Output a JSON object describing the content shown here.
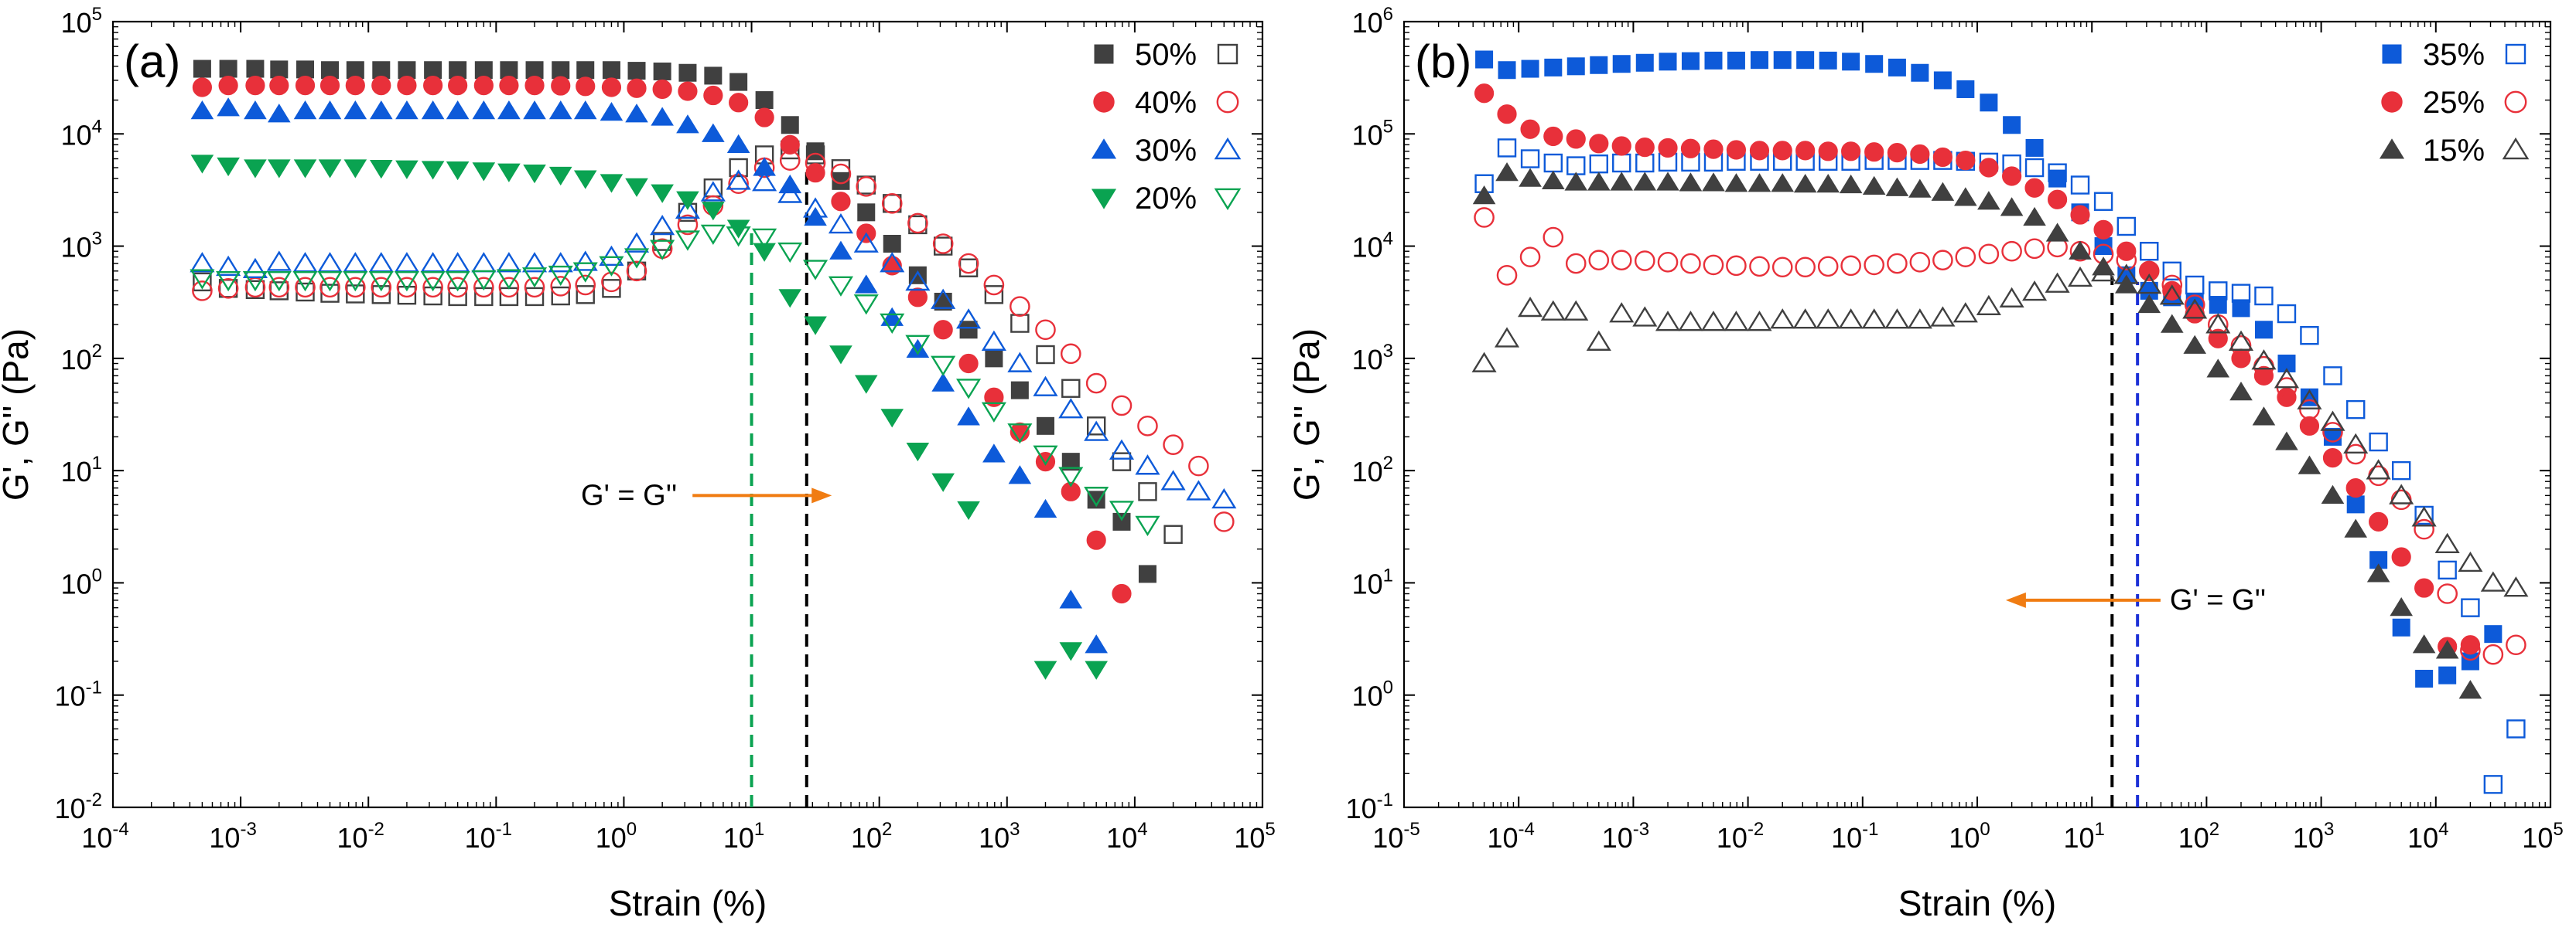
{
  "figure": {
    "colors": {
      "black": "#404040",
      "red": "#e8303a",
      "blue": "#0d5ad9",
      "green": "#0aa351",
      "annotation_arrow": "#f07c12",
      "drop_black": "#000000",
      "drop_green": "#0aa351",
      "drop_blue": "#1b2fd6"
    }
  },
  "chart_data": [
    {
      "type": "scatter",
      "panel_label": "(a)",
      "xlabel": "Strain (%)",
      "ylabel": "G', G'' (Pa)",
      "xscale": "log",
      "yscale": "log",
      "xlim_exp": [
        -4,
        5
      ],
      "ylim_exp": [
        -2,
        5
      ],
      "x_tick_exponents": [
        "-4",
        "-3",
        "-2",
        "-1",
        "0",
        "1",
        "2",
        "3",
        "4",
        "5"
      ],
      "y_tick_exponents": [
        "-2",
        "-1",
        "0",
        "1",
        "2",
        "3",
        "4",
        "5"
      ],
      "tick_base": "10",
      "legend_position": "top-right",
      "annotation": {
        "text": "G' = G''",
        "arrow_direction": "right",
        "x_data": 3.0,
        "y_data": 6.0
      },
      "crossover_lines": [
        {
          "color_key": "drop_green",
          "x": 10,
          "y_top": 1300
        },
        {
          "color_key": "drop_black",
          "x": 27,
          "y_top": 5200
        }
      ],
      "strain": [
        0.0005,
        0.0008,
        0.0013,
        0.002,
        0.0032,
        0.005,
        0.0079,
        0.0126,
        0.02,
        0.032,
        0.05,
        0.08,
        0.126,
        0.2,
        0.32,
        0.5,
        0.8,
        1.26,
        2,
        3.16,
        5,
        7.9,
        12.6,
        20,
        31.6,
        50,
        79,
        126,
        200,
        316,
        500,
        790,
        1260,
        2000,
        3160,
        5000,
        7900,
        12600,
        20000,
        31600,
        50000
      ],
      "series": [
        {
          "name": "50%",
          "color_key": "black",
          "G_prime": [
            38000,
            38000,
            38000,
            37500,
            37500,
            37000,
            37000,
            37000,
            37000,
            37000,
            37000,
            37000,
            37000,
            37000,
            37000,
            37000,
            37000,
            36500,
            36000,
            35000,
            33000,
            29000,
            20000,
            12000,
            7000,
            3800,
            2000,
            1050,
            550,
            320,
            180,
            100,
            52,
            25,
            12,
            5.5,
            3.5,
            1.2,
            null,
            null,
            null
          ],
          "G_double_prime": [
            480,
            420,
            410,
            400,
            390,
            380,
            375,
            370,
            365,
            360,
            355,
            355,
            355,
            355,
            360,
            370,
            420,
            600,
            1100,
            2000,
            3300,
            5000,
            6500,
            7200,
            6500,
            4900,
            3500,
            2400,
            1550,
            1000,
            640,
            370,
            205,
            108,
            54,
            25,
            12,
            6.5,
            2.7,
            null,
            null
          ]
        },
        {
          "name": "40%",
          "color_key": "red",
          "G_prime": [
            26000,
            27000,
            27000,
            27000,
            27000,
            27000,
            27000,
            27000,
            27000,
            27000,
            27000,
            27000,
            27000,
            27000,
            26800,
            26500,
            26000,
            25500,
            25000,
            24000,
            22000,
            19000,
            14000,
            8000,
            4500,
            2500,
            1300,
            670,
            350,
            180,
            90,
            45,
            22,
            12,
            6.5,
            2.4,
            0.8,
            null,
            null,
            null,
            null
          ],
          "G_double_prime": [
            400,
            420,
            430,
            430,
            430,
            430,
            430,
            430,
            430,
            430,
            430,
            430,
            430,
            430,
            440,
            450,
            480,
            600,
            950,
            1550,
            2300,
            3600,
            5000,
            5800,
            5500,
            4400,
            3400,
            2400,
            1600,
            1050,
            700,
            450,
            290,
            180,
            110,
            60,
            38,
            25,
            17,
            11,
            3.5
          ]
        },
        {
          "name": "30%",
          "color_key": "blue",
          "G_prime": [
            16000,
            17000,
            16000,
            15000,
            16000,
            16000,
            16000,
            16000,
            16000,
            16000,
            16000,
            16000,
            16000,
            16000,
            16000,
            16000,
            15500,
            15000,
            14000,
            12000,
            10000,
            8000,
            5000,
            3500,
            1800,
            900,
            450,
            230,
            120,
            60,
            30,
            14,
            9,
            4.5,
            0.7,
            0.28,
            null,
            null,
            null,
            null,
            null
          ],
          "G_double_prime": [
            700,
            650,
            620,
            720,
            700,
            700,
            700,
            700,
            700,
            700,
            700,
            700,
            700,
            700,
            700,
            720,
            800,
            1050,
            1500,
            2100,
            3000,
            3800,
            3700,
            2900,
            2150,
            1550,
            1050,
            700,
            480,
            330,
            220,
            140,
            90,
            55,
            35,
            22,
            15,
            11,
            8,
            6.5,
            5.5
          ]
        },
        {
          "name": "20%",
          "color_key": "green",
          "G_prime": [
            5500,
            5200,
            5000,
            5000,
            5000,
            5000,
            5000,
            4950,
            4900,
            4850,
            4800,
            4700,
            4600,
            4500,
            4300,
            4000,
            3700,
            3400,
            3000,
            2600,
            2100,
            1450,
            900,
            350,
            200,
            110,
            60,
            30,
            15,
            8,
            4.5,
            null,
            null,
            0.17,
            0.25,
            0.17,
            null,
            null,
            null,
            null,
            null
          ],
          "G_double_prime": [
            520,
            500,
            500,
            500,
            500,
            500,
            500,
            500,
            500,
            500,
            500,
            510,
            520,
            540,
            560,
            600,
            680,
            800,
            950,
            1150,
            1300,
            1250,
            1200,
            900,
            630,
            450,
            310,
            210,
            135,
            88,
            55,
            34,
            22,
            14,
            9,
            6,
            4.5,
            3.3,
            null,
            null,
            null
          ]
        }
      ]
    },
    {
      "type": "scatter",
      "panel_label": "(b)",
      "xlabel": "Strain (%)",
      "ylabel": "G', G'' (Pa)",
      "xscale": "log",
      "yscale": "log",
      "xlim_exp": [
        -5,
        5
      ],
      "ylim_exp": [
        -1,
        6
      ],
      "x_tick_exponents": [
        "-5",
        "-4",
        "-3",
        "-2",
        "-1",
        "0",
        "1",
        "2",
        "3",
        "4",
        "5"
      ],
      "y_tick_exponents": [
        "-1",
        "0",
        "1",
        "2",
        "3",
        "4",
        "5",
        "6"
      ],
      "tick_base": "10",
      "legend_position": "top-right",
      "annotation": {
        "text": "G' = G''",
        "arrow_direction": "left",
        "x_data": 30,
        "y_data": 7.0
      },
      "crossover_lines": [
        {
          "color_key": "drop_black",
          "x": 15,
          "y_top": 5400
        },
        {
          "color_key": "drop_blue",
          "x": 25,
          "y_top": 4800
        }
      ],
      "strain": [
        5e-05,
        7.9e-05,
        0.000126,
        0.0002,
        0.000316,
        0.0005,
        0.00079,
        0.00126,
        0.002,
        0.00316,
        0.005,
        0.0079,
        0.0126,
        0.02,
        0.0316,
        0.05,
        0.079,
        0.126,
        0.2,
        0.316,
        0.5,
        0.79,
        1.26,
        2,
        3.16,
        5,
        7.9,
        12.6,
        20,
        31.6,
        50,
        79,
        126,
        200,
        316,
        500,
        790,
        1260,
        2000,
        3160,
        5000,
        7900,
        12600,
        20000,
        31600,
        50000
      ],
      "series": [
        {
          "name": "35%",
          "color_key": "blue",
          "G_prime": [
            460000,
            370000,
            380000,
            390000,
            400000,
            410000,
            420000,
            430000,
            440000,
            445000,
            450000,
            450000,
            455000,
            455000,
            455000,
            450000,
            440000,
            420000,
            390000,
            350000,
            300000,
            250000,
            190000,
            120000,
            75000,
            40000,
            20000,
            10000,
            5500,
            4000,
            3500,
            3200,
            3000,
            2800,
            1800,
            900,
            450,
            200,
            50,
            16,
            4,
            1.4,
            1.5,
            2.0,
            3.5,
            null
          ],
          "G_double_prime": [
            36000,
            75000,
            60000,
            55000,
            52000,
            54000,
            55000,
            55000,
            56000,
            56000,
            56000,
            57000,
            57000,
            57000,
            57000,
            57000,
            57000,
            58000,
            58000,
            58000,
            58000,
            57000,
            56000,
            54000,
            50000,
            45000,
            35000,
            25000,
            15000,
            9000,
            6000,
            4500,
            4000,
            3800,
            3600,
            2500,
            1600,
            700,
            350,
            180,
            100,
            40,
            13,
            6,
            0.16,
            0.5
          ]
        },
        {
          "name": "25%",
          "color_key": "red",
          "G_prime": [
            230000,
            150000,
            110000,
            95000,
            90000,
            82000,
            78000,
            76000,
            75000,
            74000,
            73000,
            72000,
            71000,
            71000,
            71000,
            70000,
            70000,
            69000,
            68000,
            66000,
            62000,
            58000,
            50000,
            42000,
            33000,
            26000,
            19000,
            14000,
            9000,
            6000,
            4000,
            2500,
            1500,
            1000,
            700,
            450,
            250,
            130,
            70,
            35,
            17,
            9,
            2.7,
            2.8,
            null,
            null
          ],
          "G_double_prime": [
            18000,
            5500,
            8000,
            12000,
            7000,
            7500,
            7500,
            7400,
            7200,
            7000,
            6800,
            6700,
            6600,
            6500,
            6500,
            6600,
            6700,
            6800,
            7000,
            7200,
            7500,
            8000,
            8500,
            9000,
            9500,
            9800,
            9000,
            8500,
            7500,
            6000,
            4500,
            3000,
            2000,
            1300,
            850,
            550,
            350,
            220,
            140,
            90,
            55,
            30,
            8,
            2.5,
            2.3,
            2.8
          ]
        },
        {
          "name": "15%",
          "color_key": "black",
          "G_prime": [
            28000,
            45000,
            40000,
            38000,
            37000,
            37000,
            37000,
            37000,
            37000,
            36500,
            36500,
            36000,
            36000,
            36000,
            35500,
            35500,
            35000,
            34000,
            33000,
            32000,
            30000,
            27000,
            25000,
            22000,
            18000,
            13000,
            9000,
            6500,
            4500,
            3000,
            2000,
            1300,
            800,
            500,
            300,
            180,
            110,
            60,
            30,
            12,
            6,
            2.8,
            2.5,
            1.1,
            null,
            null
          ],
          "G_double_prime": [
            900,
            1500,
            2800,
            2600,
            2600,
            1400,
            2500,
            2300,
            2100,
            2100,
            2100,
            2100,
            2100,
            2200,
            2200,
            2200,
            2200,
            2200,
            2200,
            2200,
            2300,
            2500,
            2900,
            3400,
            3900,
            4600,
            5200,
            5800,
            5500,
            4500,
            3600,
            2700,
            2000,
            1400,
            950,
            650,
            420,
            270,
            170,
            100,
            60,
            38,
            22,
            15,
            10,
            9
          ]
        }
      ]
    }
  ]
}
